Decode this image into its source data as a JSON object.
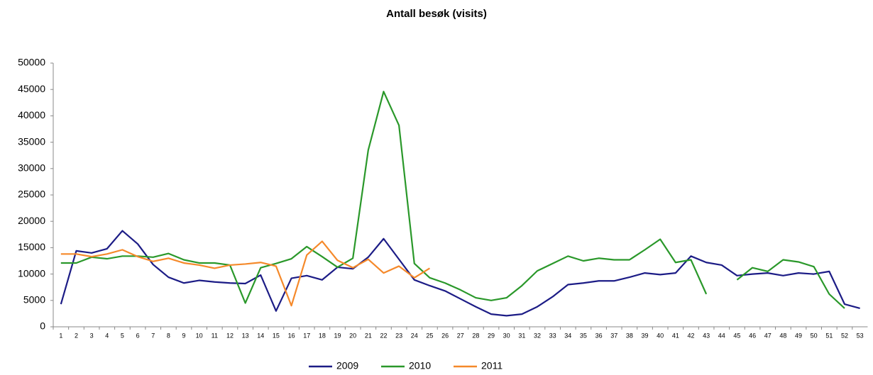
{
  "chart_data": {
    "type": "line",
    "title": "Antall besøk (visits)",
    "categories": [
      "1",
      "2",
      "3",
      "4",
      "5",
      "6",
      "7",
      "8",
      "9",
      "10",
      "11",
      "12",
      "13",
      "14",
      "15",
      "16",
      "17",
      "18",
      "19",
      "20",
      "21",
      "22",
      "23",
      "24",
      "25",
      "26",
      "27",
      "28",
      "29",
      "30",
      "31",
      "32",
      "33",
      "34",
      "35",
      "36",
      "37",
      "38",
      "39",
      "40",
      "41",
      "42",
      "43",
      "44",
      "45",
      "46",
      "47",
      "48",
      "49",
      "50",
      "51",
      "52",
      "53"
    ],
    "series": [
      {
        "name": "2009",
        "color": "#1c1c86",
        "values": [
          4300,
          14400,
          14000,
          14800,
          18200,
          15700,
          11800,
          9400,
          8300,
          8800,
          8500,
          8300,
          8200,
          9800,
          3000,
          9200,
          9700,
          8900,
          11300,
          11000,
          13200,
          16700,
          12800,
          8900,
          7800,
          6800,
          5300,
          3800,
          2400,
          2100,
          2400,
          3800,
          5700,
          8000,
          8300,
          8700,
          8700,
          9400,
          10200,
          9900,
          10200,
          13400,
          12200,
          11700,
          9700,
          10000,
          10200,
          9700,
          10200,
          10000,
          10500,
          4300,
          3500
        ]
      },
      {
        "name": "2010",
        "color": "#2a982a",
        "values": [
          12100,
          12100,
          13200,
          12900,
          13400,
          13400,
          13200,
          13900,
          12700,
          12100,
          12100,
          11700,
          4500,
          11200,
          12000,
          12900,
          15200,
          13300,
          11300,
          13000,
          33500,
          44600,
          38200,
          12000,
          9300,
          8300,
          7000,
          5500,
          5000,
          5500,
          7800,
          10600,
          12000,
          13400,
          12500,
          13000,
          12700,
          12700,
          14600,
          16600,
          12200,
          12700,
          6200,
          null,
          8900,
          11200,
          10500,
          12700,
          12300,
          11400,
          6200,
          3500,
          null
        ]
      },
      {
        "name": "2011",
        "color": "#f5892a",
        "values": [
          13800,
          13800,
          13300,
          13800,
          14600,
          13300,
          12400,
          13000,
          12100,
          11700,
          11100,
          11700,
          11900,
          12200,
          11500,
          4000,
          13600,
          16200,
          12600,
          11200,
          12800,
          10200,
          11500,
          9300,
          11100,
          null,
          null,
          null,
          null,
          null,
          null,
          null,
          null,
          null,
          null,
          null,
          null,
          null,
          null,
          null,
          null,
          null,
          null,
          null,
          null,
          null,
          null,
          null,
          null,
          null,
          null,
          null,
          null
        ]
      }
    ],
    "ylim": [
      0,
      50000
    ],
    "yticks": [
      0,
      5000,
      10000,
      15000,
      20000,
      25000,
      30000,
      35000,
      40000,
      45000,
      50000
    ],
    "grid": false,
    "legend": "bottom"
  }
}
